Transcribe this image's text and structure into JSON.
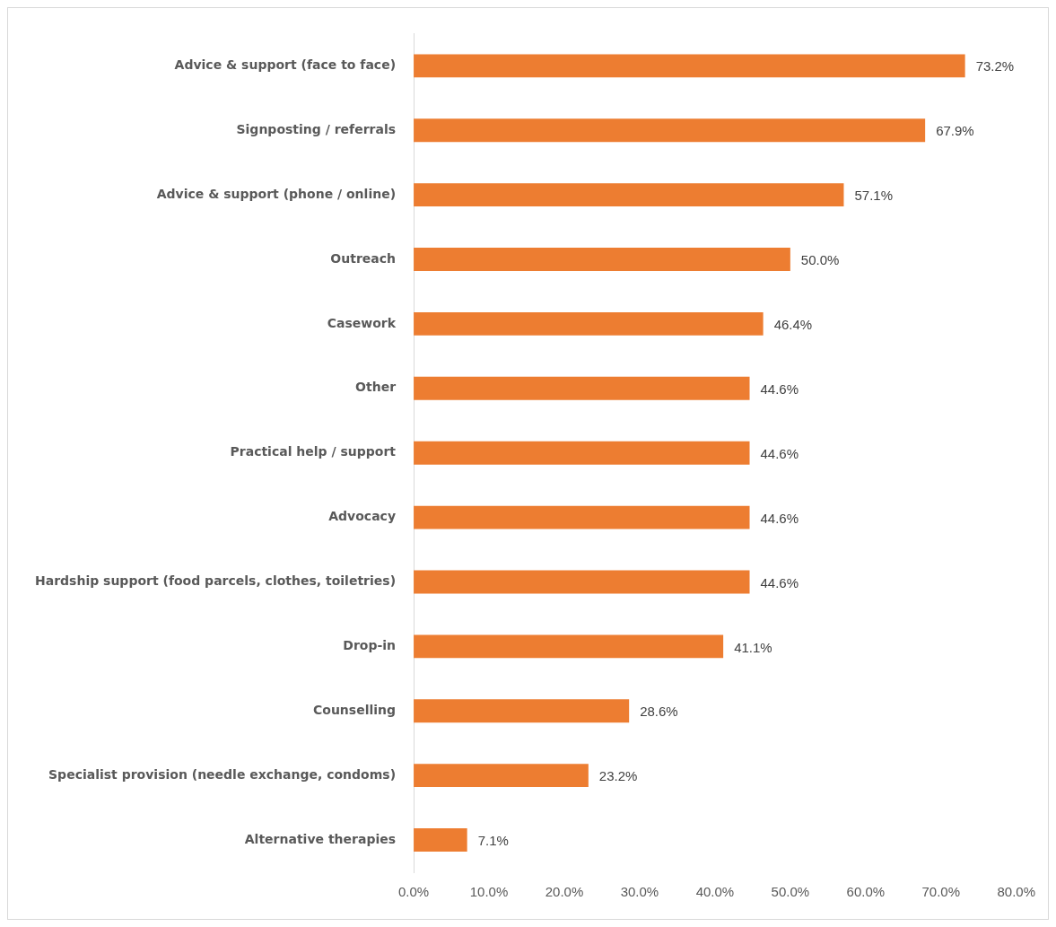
{
  "chart_data": {
    "type": "bar",
    "orientation": "horizontal",
    "categories": [
      "Advice & support (face to face)",
      "Signposting / referrals",
      "Advice & support (phone / online)",
      "Outreach",
      "Casework",
      "Other",
      "Practical help / support",
      "Advocacy",
      "Hardship support (food parcels, clothes, toiletries)",
      "Drop-in",
      "Counselling",
      "Specialist provision (needle exchange, condoms)",
      "Alternative therapies"
    ],
    "values": [
      73.2,
      67.9,
      57.1,
      50.0,
      46.4,
      44.6,
      44.6,
      44.6,
      44.6,
      41.1,
      28.6,
      23.2,
      7.1
    ],
    "value_labels": [
      "73.2%",
      "67.9%",
      "57.1%",
      "50.0%",
      "46.4%",
      "44.6%",
      "44.6%",
      "44.6%",
      "44.6%",
      "41.1%",
      "28.6%",
      "23.2%",
      "7.1%"
    ],
    "color": "#ed7d31",
    "xlim": [
      0,
      80
    ],
    "xticks": [
      {
        "value": 0,
        "label": "0.0%"
      },
      {
        "value": 10,
        "label": "10.0%"
      },
      {
        "value": 20,
        "label": "20.0%"
      },
      {
        "value": 30,
        "label": "30.0%"
      },
      {
        "value": 40,
        "label": "40.0%"
      },
      {
        "value": 50,
        "label": "50.0%"
      },
      {
        "value": 60,
        "label": "60.0%"
      },
      {
        "value": 70,
        "label": "70.0%"
      },
      {
        "value": 80,
        "label": "80.0%"
      }
    ],
    "grid": false,
    "legend": false
  }
}
